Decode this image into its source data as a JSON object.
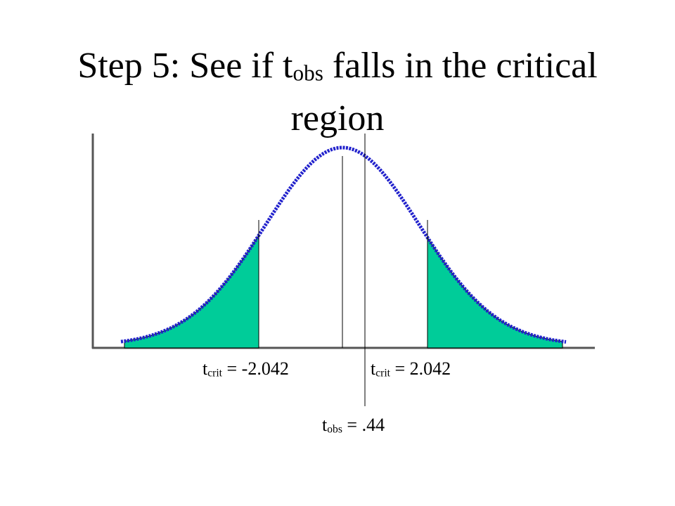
{
  "title": {
    "before": "Step 5: See if t",
    "subscript": "obs",
    "after": "falls in the critical region"
  },
  "labels": {
    "left_critical": {
      "main": "t",
      "subscript": "crit",
      "text": "= -2.042"
    },
    "right_critical": {
      "main": "t",
      "subscript": "crit",
      "text": "= 2.042"
    },
    "observed": {
      "main": "t",
      "subscript": "obs",
      "text": "= .44"
    }
  }
}
